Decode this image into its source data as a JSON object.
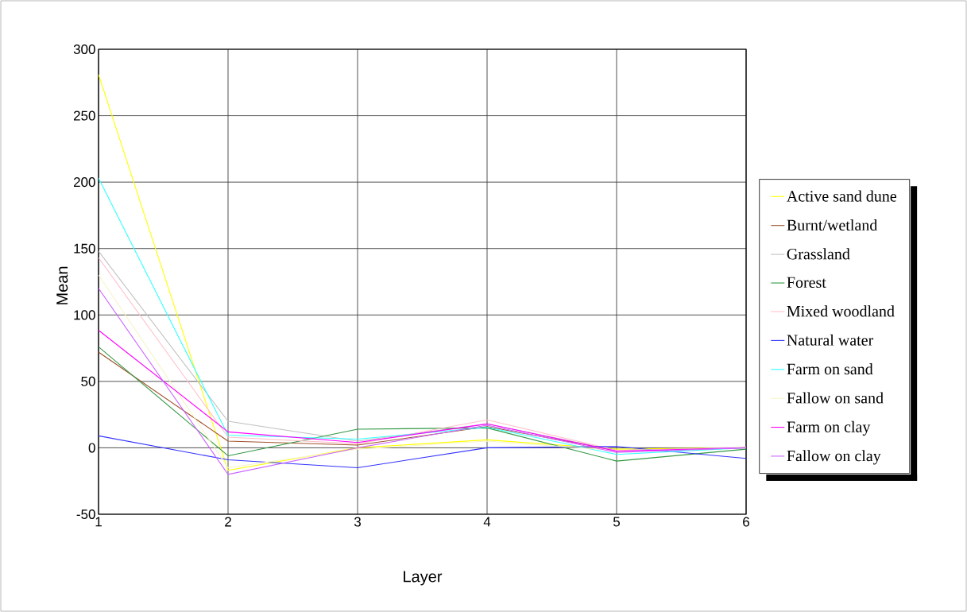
{
  "chart_data": {
    "type": "line",
    "xlabel": "Layer",
    "ylabel": "Mean",
    "x": [
      1,
      2,
      3,
      4,
      5,
      6
    ],
    "xlim": [
      1,
      6
    ],
    "xticks": [
      1,
      2,
      3,
      4,
      5,
      6
    ],
    "ylim": [
      -50,
      300
    ],
    "yticks": [
      -50,
      0,
      50,
      100,
      150,
      200,
      250,
      300
    ],
    "grid": true,
    "legend": "right",
    "marker": "none",
    "line_style": "solid",
    "series": [
      {
        "name": "Active sand dune",
        "color": "#ffff00",
        "values": [
          281,
          -17,
          0,
          6,
          -1,
          0
        ]
      },
      {
        "name": "Burnt/wetland",
        "color": "#a0522d",
        "values": [
          72,
          5,
          2,
          16,
          -2,
          0
        ]
      },
      {
        "name": "Grassland",
        "color": "#c0c0c0",
        "values": [
          148,
          20,
          5,
          18,
          -2,
          0
        ]
      },
      {
        "name": "Forest",
        "color": "#339944",
        "values": [
          76,
          -6,
          14,
          15,
          -10,
          -1
        ]
      },
      {
        "name": "Mixed woodland",
        "color": "#ffc0cb",
        "values": [
          143,
          8,
          3,
          21,
          -2,
          0
        ]
      },
      {
        "name": "Natural water",
        "color": "#3333ff",
        "values": [
          9,
          -9,
          -15,
          0,
          1,
          -8
        ]
      },
      {
        "name": "Farm on sand",
        "color": "#33ffff",
        "values": [
          203,
          9.5,
          6.5,
          15.5,
          -5,
          0
        ]
      },
      {
        "name": "Fallow on sand",
        "color": "#f5f5c8",
        "values": [
          130,
          -15,
          -1,
          5,
          -2,
          0
        ]
      },
      {
        "name": "Farm on clay",
        "color": "#ff00ff",
        "values": [
          88.5,
          12,
          4,
          18,
          -2.5,
          0
        ]
      },
      {
        "name": "Fallow on clay",
        "color": "#cc66ff",
        "values": [
          120,
          -20,
          0,
          17,
          -3.5,
          0
        ]
      }
    ]
  }
}
